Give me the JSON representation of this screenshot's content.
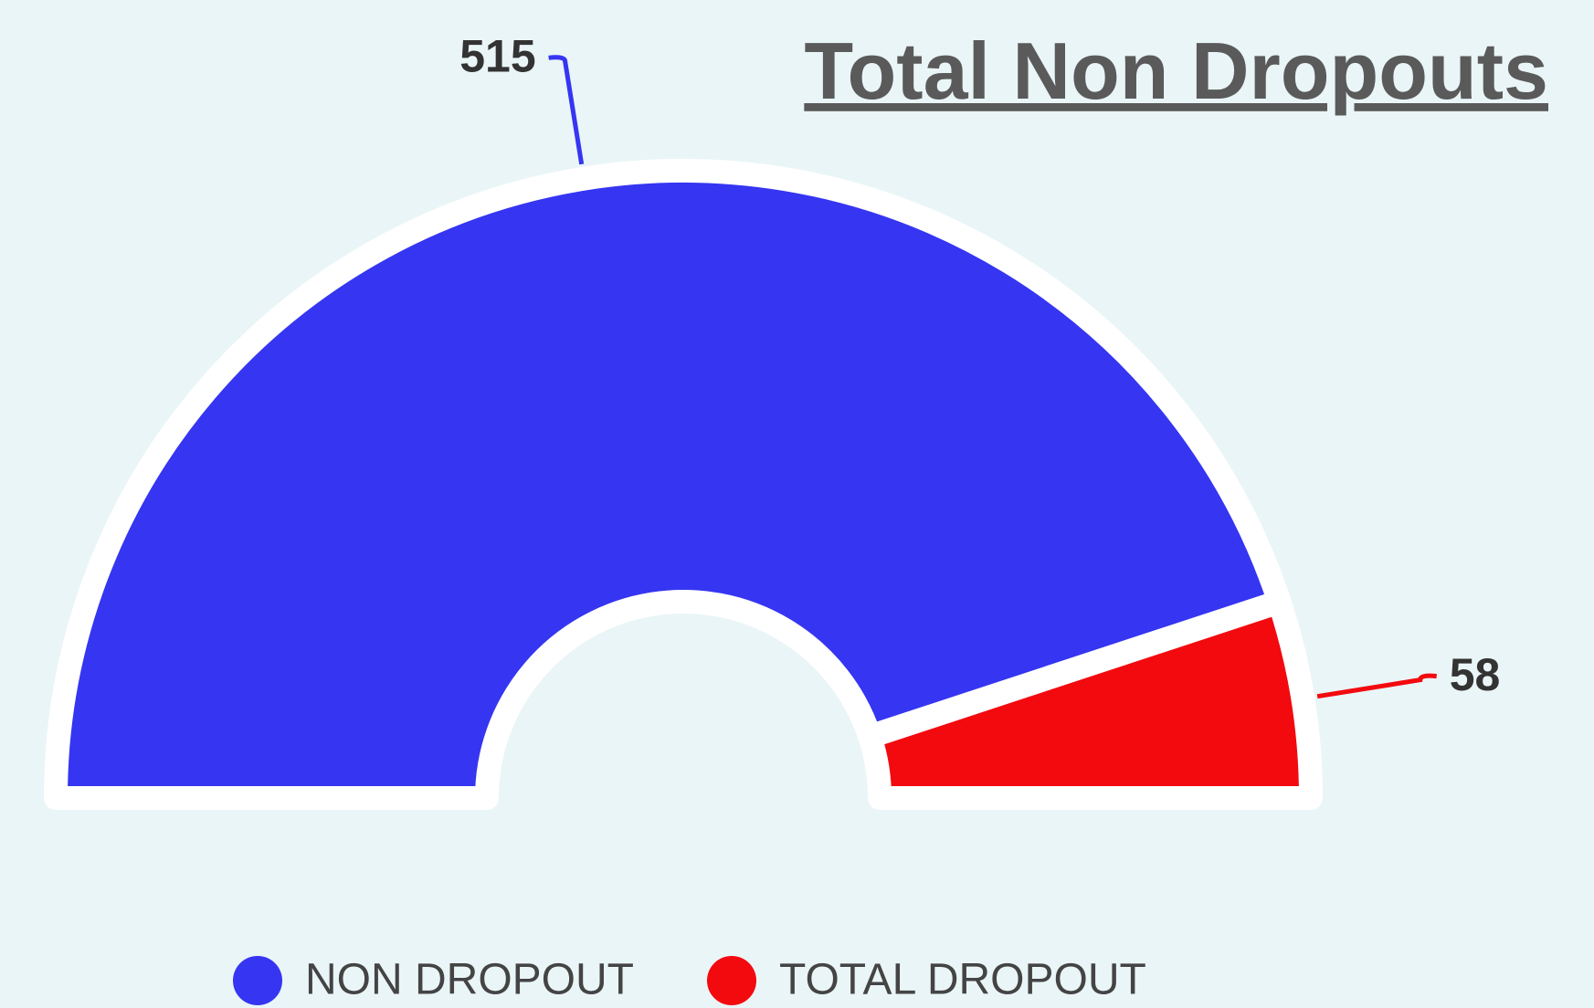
{
  "chart_data": {
    "type": "half-donut",
    "title": "Total Non Dropouts",
    "categories": [
      "NON DROPOUT",
      "TOTAL DROPOUT"
    ],
    "values": [
      515,
      58
    ],
    "colors": [
      "#3535f2",
      "#f20a0f"
    ]
  }
}
